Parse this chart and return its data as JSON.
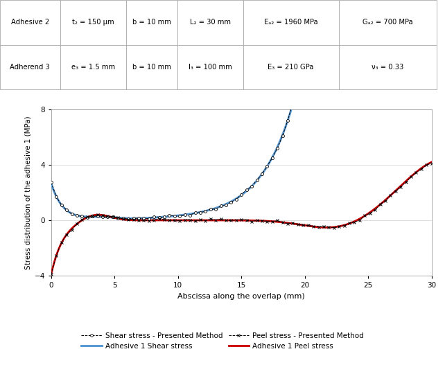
{
  "xlabel": "Abscissa along the overlap (mm)",
  "ylabel": "Stress distribution of the adhesive 1 (MPa)",
  "xlim": [
    0,
    30
  ],
  "ylim": [
    -4,
    8
  ],
  "yticks": [
    -4,
    0,
    4,
    8
  ],
  "xticks": [
    0,
    5,
    10,
    15,
    20,
    25,
    30
  ],
  "shear_color": "#5b9bd5",
  "peel_color": "#cc0000",
  "table_rows": [
    [
      "Adhesive 2",
      "t₂ = 150 μm",
      "b = 10 mm",
      "L₂ = 30 mm",
      "Eₐ₂ = 1960 MPa",
      "Gₐ₂ = 700 MPa"
    ],
    [
      "Adherend 3",
      "e₃ = 1.5 mm",
      "b = 10 mm",
      "l₃ = 100 mm",
      "E₃ = 210 GPa",
      "ν₃ = 0.33"
    ]
  ],
  "legend_entries": [
    "Shear stress - Presented Method",
    "Adhesive 1 Shear stress",
    "Peel stress - Presented Method",
    "Adhesive 1 Peel stress"
  ]
}
